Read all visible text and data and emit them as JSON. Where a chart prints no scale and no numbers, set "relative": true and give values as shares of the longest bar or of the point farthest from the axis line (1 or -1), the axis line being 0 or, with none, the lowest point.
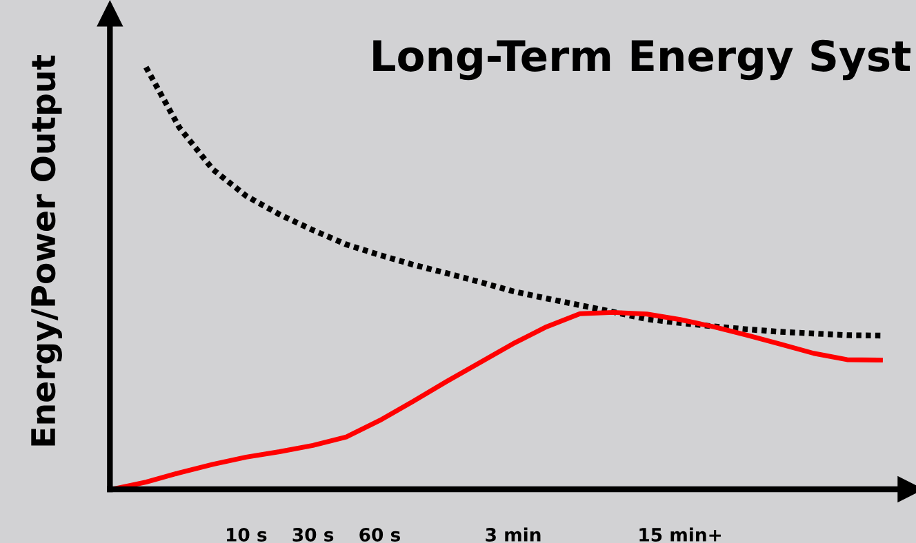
{
  "chart_data": {
    "type": "line",
    "title": "Long-Term Energy Syst",
    "ylabel": "Energy/Power Output",
    "relative": true,
    "categories": [
      null,
      null,
      null,
      null,
      "10 s",
      null,
      "30 s",
      null,
      "60 s",
      null,
      null,
      null,
      "3 min",
      null,
      null,
      null,
      null,
      "15 min+",
      null,
      null,
      null,
      null,
      null,
      null
    ],
    "grid": false,
    "legend": false,
    "series": [
      {
        "color": "#000000",
        "line_style": "dotted",
        "values": [
          null,
          1.0,
          0.857,
          0.758,
          0.695,
          0.651,
          0.614,
          0.58,
          0.555,
          0.532,
          0.512,
          0.491,
          0.469,
          0.452,
          0.436,
          0.42,
          0.403,
          0.394,
          0.386,
          0.379,
          0.373,
          0.369,
          0.365,
          0.364
        ]
      },
      {
        "color": "#ff0000",
        "line_style": "solid",
        "values": [
          0.0,
          0.017,
          0.039,
          0.059,
          0.076,
          0.089,
          0.104,
          0.124,
          0.163,
          0.208,
          0.255,
          0.3,
          0.345,
          0.385,
          0.416,
          0.419,
          0.415,
          0.402,
          0.385,
          0.365,
          0.344,
          0.322,
          0.307,
          0.306
        ]
      }
    ]
  }
}
